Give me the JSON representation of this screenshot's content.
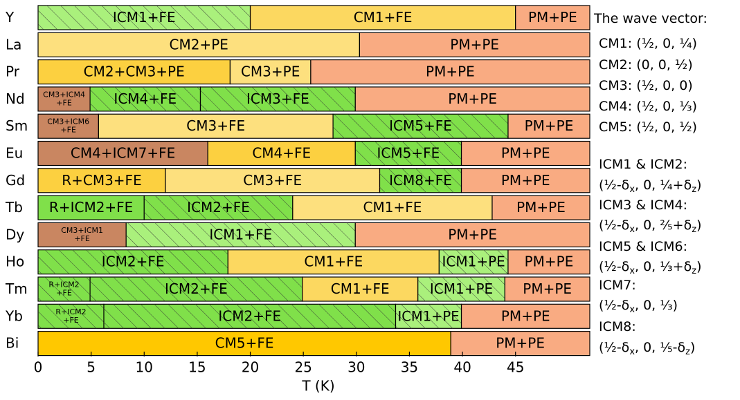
{
  "chart_data": {
    "type": "stacked-bar",
    "xlabel": "T (K)",
    "xlim": [
      0,
      52
    ],
    "xticks": [
      0,
      5,
      10,
      15,
      20,
      25,
      30,
      35,
      40,
      45
    ],
    "rows": [
      {
        "name": "Y",
        "segments": [
          {
            "label": "ICM1+FE",
            "value": 20,
            "color": "#aaf07c",
            "hatched": true
          },
          {
            "label": "CM1+FE",
            "value": 25,
            "color": "#fcd860",
            "hatched": false
          },
          {
            "label": "PM+PE",
            "value": 7,
            "color": "#f9ab82",
            "hatched": false
          }
        ]
      },
      {
        "name": "La",
        "segments": [
          {
            "label": "CM2+PE",
            "value": 30.3,
            "color": "#fde07e",
            "hatched": false
          },
          {
            "label": "PM+PE",
            "value": 21.7,
            "color": "#f9ab82",
            "hatched": false
          }
        ]
      },
      {
        "name": "Pr",
        "segments": [
          {
            "label": "CM2+CM3+PE",
            "value": 18.1,
            "color": "#fcd040",
            "hatched": false
          },
          {
            "label": "CM3+PE",
            "value": 7.6,
            "color": "#fde07e",
            "hatched": false
          },
          {
            "label": "PM+PE",
            "value": 26.3,
            "color": "#f9ab82",
            "hatched": false
          }
        ]
      },
      {
        "name": "Nd",
        "segments": [
          {
            "label": [
              "CM3+ICM4",
              "+FE"
            ],
            "value": 4.9,
            "color": "#c98661",
            "hatched": false
          },
          {
            "label": "ICM4+FE",
            "value": 10.4,
            "color": "#80e04a",
            "hatched": true
          },
          {
            "label": "ICM3+FE",
            "value": 14.6,
            "color": "#80e04a",
            "hatched": true
          },
          {
            "label": "PM+PE",
            "value": 22.1,
            "color": "#f9ab82",
            "hatched": false
          }
        ]
      },
      {
        "name": "Sm",
        "segments": [
          {
            "label": [
              "CM3+ICM6",
              "+FE"
            ],
            "value": 5.7,
            "color": "#c98661",
            "hatched": false
          },
          {
            "label": "CM3+FE",
            "value": 22.1,
            "color": "#fde07e",
            "hatched": false
          },
          {
            "label": "ICM5+FE",
            "value": 16.5,
            "color": "#80e04a",
            "hatched": true
          },
          {
            "label": "PM+PE",
            "value": 7.7,
            "color": "#f9ab82",
            "hatched": false
          }
        ]
      },
      {
        "name": "Eu",
        "segments": [
          {
            "label": "CM4+ICM7+FE",
            "value": 16,
            "color": "#c98661",
            "hatched": false
          },
          {
            "label": "CM4+FE",
            "value": 13.9,
            "color": "#fcd040",
            "hatched": false
          },
          {
            "label": "ICM5+FE",
            "value": 10,
            "color": "#80e04a",
            "hatched": true
          },
          {
            "label": "PM+PE",
            "value": 12.1,
            "color": "#f9ab82",
            "hatched": false
          }
        ]
      },
      {
        "name": "Gd",
        "segments": [
          {
            "label": "R+CM3+FE",
            "value": 12,
            "color": "#fcd040",
            "hatched": false
          },
          {
            "label": "CM3+FE",
            "value": 20.2,
            "color": "#fde07e",
            "hatched": false
          },
          {
            "label": "ICM8+FE",
            "value": 7.7,
            "color": "#80e04a",
            "hatched": true
          },
          {
            "label": "PM+PE",
            "value": 12.1,
            "color": "#f9ab82",
            "hatched": false
          }
        ]
      },
      {
        "name": "Tb",
        "segments": [
          {
            "label": "R+ICM2+FE",
            "value": 10,
            "color": "#80e04a",
            "hatched": false
          },
          {
            "label": "ICM2+FE",
            "value": 14,
            "color": "#80e04a",
            "hatched": true
          },
          {
            "label": "CM1+FE",
            "value": 18.8,
            "color": "#fde07e",
            "hatched": false
          },
          {
            "label": "PM+PE",
            "value": 9.2,
            "color": "#f9ab82",
            "hatched": false
          }
        ]
      },
      {
        "name": "Dy",
        "segments": [
          {
            "label": [
              "CM3+ICM1",
              "+FE"
            ],
            "value": 8.3,
            "color": "#c98661",
            "hatched": false
          },
          {
            "label": "ICM1+FE",
            "value": 21.6,
            "color": "#aaf07c",
            "hatched": true
          },
          {
            "label": "PM+PE",
            "value": 22.1,
            "color": "#f9ab82",
            "hatched": false
          }
        ]
      },
      {
        "name": "Ho",
        "segments": [
          {
            "label": "ICM2+FE",
            "value": 17.9,
            "color": "#80e04a",
            "hatched": true
          },
          {
            "label": "CM1+FE",
            "value": 19.9,
            "color": "#fcd860",
            "hatched": false
          },
          {
            "label": "ICM1+PE",
            "value": 6.5,
            "color": "#aaf07c",
            "hatched": true
          },
          {
            "label": "PM+PE",
            "value": 7.7,
            "color": "#f9ab82",
            "hatched": false
          }
        ]
      },
      {
        "name": "Tm",
        "segments": [
          {
            "label": [
              "R+ICM2",
              "+FE"
            ],
            "value": 4.9,
            "color": "#80e04a",
            "hatched": true
          },
          {
            "label": "ICM2+FE",
            "value": 20,
            "color": "#80e04a",
            "hatched": true
          },
          {
            "label": "CM1+FE",
            "value": 10.9,
            "color": "#fcd860",
            "hatched": false
          },
          {
            "label": "ICM1+PE",
            "value": 8.2,
            "color": "#aaf07c",
            "hatched": true
          },
          {
            "label": "PM+PE",
            "value": 8,
            "color": "#f9ab82",
            "hatched": false
          }
        ]
      },
      {
        "name": "Yb",
        "segments": [
          {
            "label": [
              "R+ICM2",
              "+FE"
            ],
            "value": 6.2,
            "color": "#80e04a",
            "hatched": true
          },
          {
            "label": "ICM2+FE",
            "value": 27.5,
            "color": "#80e04a",
            "hatched": true
          },
          {
            "label": "ICM1+PE",
            "value": 6.2,
            "color": "#aaf07c",
            "hatched": true
          },
          {
            "label": "PM+PE",
            "value": 12.1,
            "color": "#f9ab82",
            "hatched": false
          }
        ]
      },
      {
        "name": "Bi",
        "segments": [
          {
            "label": "CM5+FE",
            "value": 38.9,
            "color": "#ffc800",
            "hatched": false
          },
          {
            "label": "PM+PE",
            "value": 13.1,
            "color": "#f9ab82",
            "hatched": false
          }
        ]
      }
    ]
  },
  "legend": {
    "lines": [
      [
        "The wave vector:"
      ],
      [
        "CM1: (½, 0, ¼)"
      ],
      [
        "CM2: (0, 0, ½)"
      ],
      [
        "CM3: (½, 0, 0)"
      ],
      [
        "CM4: (½, 0, ⅓)"
      ],
      [
        "CM5: (½, 0, ½)"
      ],
      [
        "ICM1 & ICM2:"
      ],
      [
        "(½-δ",
        "x",
        ", 0, ¼+δ",
        "z",
        ")"
      ],
      [
        "ICM3 & ICM4:"
      ],
      [
        "(½-δ",
        "x",
        ", 0, ⅖+δ",
        "z",
        ")"
      ],
      [
        "ICM5 & ICM6:"
      ],
      [
        "(½-δ",
        "x",
        ", 0, ⅓+δ",
        "z",
        ")"
      ],
      [
        "ICM7:"
      ],
      [
        "(½-δ",
        "x",
        ", 0, ⅓)"
      ],
      [
        "ICM8:"
      ],
      [
        "(½-δ",
        "x",
        ", 0, ⅕-δ",
        "z",
        ")"
      ]
    ]
  }
}
